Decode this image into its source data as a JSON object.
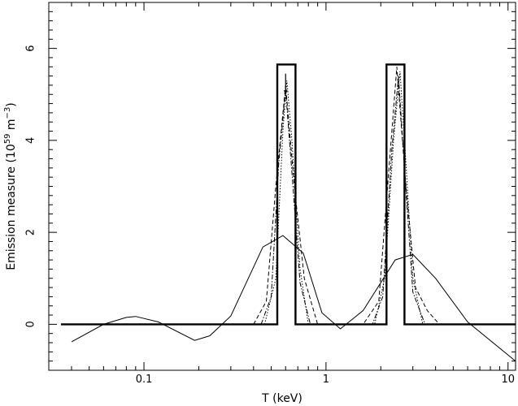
{
  "chart_data": {
    "type": "line",
    "title": "",
    "xlabel": "T (keV)",
    "ylabel_main": "Emission measure (10",
    "ylabel_exp1": "59",
    "ylabel_unit": " m",
    "ylabel_exp2": "−3",
    "ylabel_close": ")",
    "xscale": "log",
    "xlim": [
      0.03,
      11
    ],
    "ylim": [
      -1,
      7
    ],
    "x_tick_labels": [
      {
        "value": 0.1,
        "label": "0.1"
      },
      {
        "value": 1,
        "label": "1"
      },
      {
        "value": 10,
        "label": "10"
      }
    ],
    "x_minor_ticks": [
      0.04,
      0.05,
      0.06,
      0.07,
      0.08,
      0.09,
      0.2,
      0.3,
      0.4,
      0.5,
      0.6,
      0.7,
      0.8,
      0.9,
      2,
      3,
      4,
      5,
      6,
      7,
      8,
      9
    ],
    "y_tick_labels": [
      {
        "value": 0,
        "label": "0"
      },
      {
        "value": 2,
        "label": "2"
      },
      {
        "value": 4,
        "label": "4"
      },
      {
        "value": 6,
        "label": "6"
      }
    ],
    "y_minor_ticks": [
      -0.8,
      -0.6,
      -0.4,
      -0.2,
      0.2,
      0.4,
      0.6,
      0.8,
      1.0,
      1.2,
      1.4,
      1.6,
      1.8,
      2.2,
      2.4,
      2.6,
      2.8,
      3.0,
      3.2,
      3.4,
      3.6,
      3.8,
      4.2,
      4.4,
      4.6,
      4.8,
      5.0,
      5.2,
      5.4,
      5.6,
      5.8,
      6.2,
      6.4,
      6.6,
      6.8
    ],
    "grid": false,
    "series": [
      {
        "style": "thick-solid",
        "x": [
          0.035,
          0.54,
          0.54,
          0.68,
          0.68,
          2.15,
          2.15,
          2.7,
          2.7,
          11
        ],
        "y": [
          0,
          0,
          5.65,
          5.65,
          0,
          0,
          5.65,
          5.65,
          0,
          0
        ]
      },
      {
        "style": "thin-solid",
        "x": [
          0.04,
          0.06,
          0.08,
          0.09,
          0.12,
          0.19,
          0.23,
          0.3,
          0.45,
          0.58,
          0.75,
          0.95,
          1.2,
          1.6,
          2.4,
          3.0,
          4.0,
          6.0,
          11
        ],
        "y": [
          -0.38,
          0.0,
          0.15,
          0.17,
          0.05,
          -0.35,
          -0.25,
          0.18,
          1.68,
          1.93,
          1.55,
          0.25,
          -0.1,
          0.3,
          1.4,
          1.52,
          1.0,
          0.05,
          -0.8
        ]
      },
      {
        "style": "dashed",
        "x": [
          0.4,
          0.47,
          0.53,
          0.6,
          0.67,
          0.76,
          0.9,
          1.6,
          1.95,
          2.2,
          2.45,
          2.75,
          3.1,
          3.6,
          4.2
        ],
        "y": [
          0,
          0.5,
          3.0,
          5.2,
          3.0,
          1.0,
          0,
          0,
          0.5,
          3.2,
          5.6,
          3.0,
          0.8,
          0.3,
          0
        ]
      },
      {
        "style": "dash-dot",
        "x": [
          0.44,
          0.5,
          0.55,
          0.6,
          0.65,
          0.72,
          0.82,
          1.8,
          2.05,
          2.3,
          2.5,
          2.7,
          3.0,
          3.5
        ],
        "y": [
          0,
          0.6,
          3.5,
          5.1,
          3.3,
          0.9,
          0,
          0,
          0.6,
          3.8,
          5.4,
          3.4,
          0.7,
          0
        ]
      },
      {
        "style": "dotted",
        "x": [
          0.46,
          0.53,
          0.58,
          0.61,
          0.65,
          0.72,
          0.8,
          1.85,
          2.1,
          2.35,
          2.55,
          2.75,
          3.0,
          3.4
        ],
        "y": [
          0,
          1.0,
          4.2,
          5.3,
          4.0,
          1.2,
          0,
          0,
          1.0,
          4.0,
          5.5,
          3.5,
          1.0,
          0
        ]
      }
    ],
    "arrow": {
      "x": 0.6,
      "y_from": 5.45,
      "y_to": 5.0
    }
  }
}
